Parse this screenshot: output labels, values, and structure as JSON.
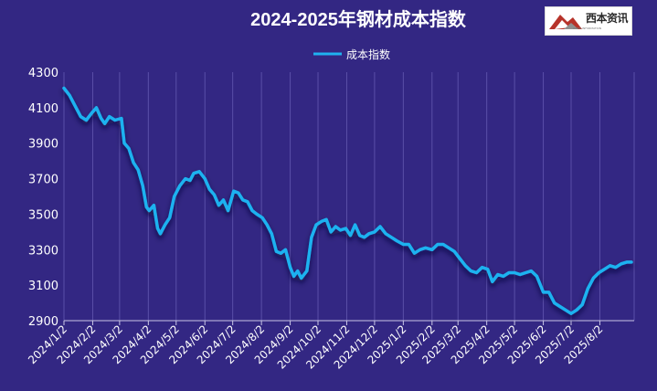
{
  "logo": {
    "name": "西本资讯",
    "tagline": "XIBEN INFORMATION"
  },
  "colors": {
    "background": "#332783",
    "line": "#1fb2f0",
    "grid": "#5a4fa8",
    "axis": "#c9c6e6",
    "text": "#ffffff"
  },
  "chart_data": {
    "type": "line",
    "title": "2024-2025年钢材成本指数",
    "legend": {
      "position": "top-center"
    },
    "grid": {
      "vertical": true,
      "horizontal": false
    },
    "ylim": [
      2900,
      4300
    ],
    "yticks": [
      2900,
      3100,
      3300,
      3500,
      3700,
      3900,
      4100,
      4300
    ],
    "xlim": [
      "2024-01-02",
      "2025-09-08"
    ],
    "xticks": [
      "2024/1/2",
      "2024/2/2",
      "2024/3/2",
      "2024/4/2",
      "2024/5/2",
      "2024/6/2",
      "2024/7/2",
      "2024/8/2",
      "2024/9/2",
      "2024/10/2",
      "2024/11/2",
      "2024/12/2",
      "2025/1/2",
      "2025/2/2",
      "2025/3/2",
      "2025/4/2",
      "2025/5/2",
      "2025/6/2",
      "2025/7/2",
      "2025/8/2"
    ],
    "series": [
      {
        "name": "成本指数",
        "points": [
          [
            "2024-01-02",
            4210
          ],
          [
            "2024-01-08",
            4170
          ],
          [
            "2024-01-14",
            4110
          ],
          [
            "2024-01-20",
            4050
          ],
          [
            "2024-01-26",
            4030
          ],
          [
            "2024-02-01",
            4070
          ],
          [
            "2024-02-06",
            4100
          ],
          [
            "2024-02-11",
            4040
          ],
          [
            "2024-02-15",
            4010
          ],
          [
            "2024-02-20",
            4050
          ],
          [
            "2024-02-26",
            4030
          ],
          [
            "2024-03-04",
            4040
          ],
          [
            "2024-03-07",
            3900
          ],
          [
            "2024-03-12",
            3870
          ],
          [
            "2024-03-17",
            3790
          ],
          [
            "2024-03-22",
            3750
          ],
          [
            "2024-03-27",
            3660
          ],
          [
            "2024-03-31",
            3540
          ],
          [
            "2024-04-03",
            3520
          ],
          [
            "2024-04-08",
            3550
          ],
          [
            "2024-04-12",
            3420
          ],
          [
            "2024-04-15",
            3390
          ],
          [
            "2024-04-20",
            3440
          ],
          [
            "2024-04-25",
            3480
          ],
          [
            "2024-04-30",
            3600
          ],
          [
            "2024-05-06",
            3660
          ],
          [
            "2024-05-12",
            3700
          ],
          [
            "2024-05-17",
            3690
          ],
          [
            "2024-05-21",
            3730
          ],
          [
            "2024-05-27",
            3740
          ],
          [
            "2024-06-02",
            3700
          ],
          [
            "2024-06-07",
            3640
          ],
          [
            "2024-06-12",
            3610
          ],
          [
            "2024-06-17",
            3550
          ],
          [
            "2024-06-22",
            3580
          ],
          [
            "2024-06-27",
            3520
          ],
          [
            "2024-07-03",
            3630
          ],
          [
            "2024-07-08",
            3620
          ],
          [
            "2024-07-13",
            3580
          ],
          [
            "2024-07-18",
            3570
          ],
          [
            "2024-07-23",
            3520
          ],
          [
            "2024-07-28",
            3500
          ],
          [
            "2024-08-03",
            3480
          ],
          [
            "2024-08-08",
            3440
          ],
          [
            "2024-08-13",
            3390
          ],
          [
            "2024-08-18",
            3290
          ],
          [
            "2024-08-23",
            3280
          ],
          [
            "2024-08-28",
            3300
          ],
          [
            "2024-09-02",
            3200
          ],
          [
            "2024-09-06",
            3150
          ],
          [
            "2024-09-10",
            3180
          ],
          [
            "2024-09-14",
            3140
          ],
          [
            "2024-09-20",
            3180
          ],
          [
            "2024-09-25",
            3370
          ],
          [
            "2024-09-30",
            3440
          ],
          [
            "2024-10-06",
            3460
          ],
          [
            "2024-10-11",
            3470
          ],
          [
            "2024-10-16",
            3400
          ],
          [
            "2024-10-21",
            3430
          ],
          [
            "2024-10-26",
            3410
          ],
          [
            "2024-11-01",
            3420
          ],
          [
            "2024-11-06",
            3380
          ],
          [
            "2024-11-11",
            3440
          ],
          [
            "2024-11-16",
            3380
          ],
          [
            "2024-11-21",
            3370
          ],
          [
            "2024-11-26",
            3390
          ],
          [
            "2024-12-02",
            3400
          ],
          [
            "2024-12-08",
            3430
          ],
          [
            "2024-12-14",
            3390
          ],
          [
            "2024-12-20",
            3370
          ],
          [
            "2024-12-26",
            3350
          ],
          [
            "2025-01-02",
            3330
          ],
          [
            "2025-01-08",
            3330
          ],
          [
            "2025-01-14",
            3280
          ],
          [
            "2025-01-20",
            3300
          ],
          [
            "2025-01-26",
            3310
          ],
          [
            "2025-02-02",
            3300
          ],
          [
            "2025-02-08",
            3330
          ],
          [
            "2025-02-14",
            3330
          ],
          [
            "2025-02-20",
            3310
          ],
          [
            "2025-02-26",
            3290
          ],
          [
            "2025-03-04",
            3250
          ],
          [
            "2025-03-10",
            3210
          ],
          [
            "2025-03-16",
            3180
          ],
          [
            "2025-03-22",
            3170
          ],
          [
            "2025-03-28",
            3200
          ],
          [
            "2025-04-03",
            3190
          ],
          [
            "2025-04-08",
            3120
          ],
          [
            "2025-04-14",
            3160
          ],
          [
            "2025-04-20",
            3150
          ],
          [
            "2025-04-26",
            3170
          ],
          [
            "2025-05-02",
            3170
          ],
          [
            "2025-05-08",
            3160
          ],
          [
            "2025-05-14",
            3170
          ],
          [
            "2025-05-20",
            3180
          ],
          [
            "2025-05-26",
            3150
          ],
          [
            "2025-06-02",
            3060
          ],
          [
            "2025-06-08",
            3060
          ],
          [
            "2025-06-14",
            3000
          ],
          [
            "2025-06-20",
            2980
          ],
          [
            "2025-06-26",
            2960
          ],
          [
            "2025-07-02",
            2940
          ],
          [
            "2025-07-08",
            2960
          ],
          [
            "2025-07-14",
            2990
          ],
          [
            "2025-07-20",
            3080
          ],
          [
            "2025-07-26",
            3140
          ],
          [
            "2025-08-01",
            3170
          ],
          [
            "2025-08-07",
            3190
          ],
          [
            "2025-08-13",
            3210
          ],
          [
            "2025-08-19",
            3200
          ],
          [
            "2025-08-25",
            3220
          ],
          [
            "2025-08-31",
            3230
          ],
          [
            "2025-09-05",
            3230
          ]
        ]
      }
    ]
  }
}
